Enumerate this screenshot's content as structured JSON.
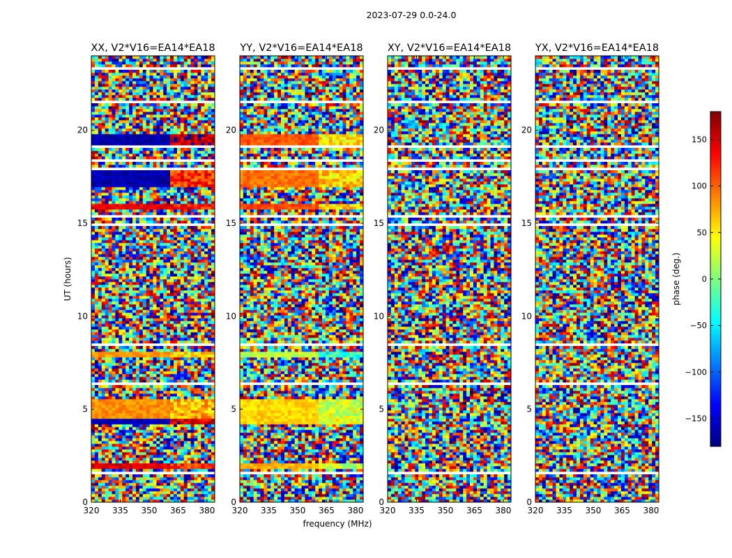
{
  "figure": {
    "suptitle": "2023-07-29 0.0-24.0",
    "xlabel": "frequency (MHz)",
    "ylabel": "UT (hours)",
    "colorbar_label": "phase (deg.)",
    "colorbar_ticks": [
      150,
      100,
      50,
      0,
      -50,
      -100,
      -150
    ],
    "colorbar_tick_labels": [
      "150",
      "100",
      "50",
      "0",
      "−50",
      "−100",
      "−150"
    ],
    "colorbar_range": [
      -180,
      180
    ],
    "colormap": "jet"
  },
  "chart_data": [
    {
      "type": "heatmap",
      "title": "XX, V2*V16=EA14*EA18",
      "xlim": [
        320,
        384
      ],
      "ylim": [
        0,
        24
      ],
      "x_ticks": [
        320,
        335,
        350,
        365,
        380
      ],
      "y_ticks": [
        0,
        5,
        10,
        15,
        20
      ],
      "coherent_bands": [
        {
          "t_start": 1.85,
          "t_end": 2.15,
          "phase_low_freq": 145,
          "phase_high_freq": 115
        },
        {
          "t_start": 4.2,
          "t_end": 4.45,
          "phase_low_freq": -160,
          "phase_high_freq": 150
        },
        {
          "t_start": 4.45,
          "t_end": 5.6,
          "phase_low_freq": 85,
          "phase_high_freq": 70
        },
        {
          "t_start": 7.8,
          "t_end": 8.1,
          "phase_low_freq": 80,
          "phase_high_freq": 55
        },
        {
          "t_start": 15.7,
          "t_end": 16.0,
          "phase_low_freq": 140,
          "phase_high_freq": 125
        },
        {
          "t_start": 16.9,
          "t_end": 17.8,
          "phase_low_freq": -165,
          "phase_high_freq": 120
        },
        {
          "t_start": 19.1,
          "t_end": 19.8,
          "phase_low_freq": -165,
          "phase_high_freq": 165
        }
      ]
    },
    {
      "type": "heatmap",
      "title": "YY, V2*V16=EA14*EA18",
      "xlim": [
        320,
        384
      ],
      "ylim": [
        0,
        24
      ],
      "x_ticks": [
        320,
        335,
        350,
        365,
        380
      ],
      "y_ticks": [
        0,
        5,
        10,
        15,
        20
      ],
      "coherent_bands": [
        {
          "t_start": 1.85,
          "t_end": 2.15,
          "phase_low_freq": 70,
          "phase_high_freq": 20
        },
        {
          "t_start": 4.2,
          "t_end": 5.6,
          "phase_low_freq": 60,
          "phase_high_freq": 30
        },
        {
          "t_start": 7.8,
          "t_end": 8.1,
          "phase_low_freq": 20,
          "phase_high_freq": -30
        },
        {
          "t_start": 15.7,
          "t_end": 16.0,
          "phase_low_freq": 110,
          "phase_high_freq": 60
        },
        {
          "t_start": 16.9,
          "t_end": 17.8,
          "phase_low_freq": 95,
          "phase_high_freq": 60
        },
        {
          "t_start": 19.1,
          "t_end": 19.8,
          "phase_low_freq": 105,
          "phase_high_freq": 50
        }
      ]
    },
    {
      "type": "heatmap",
      "title": "XY, V2*V16=EA14*EA18",
      "xlim": [
        320,
        384
      ],
      "ylim": [
        0,
        24
      ],
      "x_ticks": [
        320,
        335,
        350,
        365,
        380
      ],
      "y_ticks": [
        0,
        5,
        10,
        15,
        20
      ],
      "coherent_bands": []
    },
    {
      "type": "heatmap",
      "title": "YX, V2*V16=EA14*EA18",
      "xlim": [
        320,
        384
      ],
      "ylim": [
        0,
        24
      ],
      "x_ticks": [
        320,
        335,
        350,
        365,
        380
      ],
      "y_ticks": [
        0,
        5,
        10,
        15,
        20
      ],
      "coherent_bands": []
    }
  ]
}
